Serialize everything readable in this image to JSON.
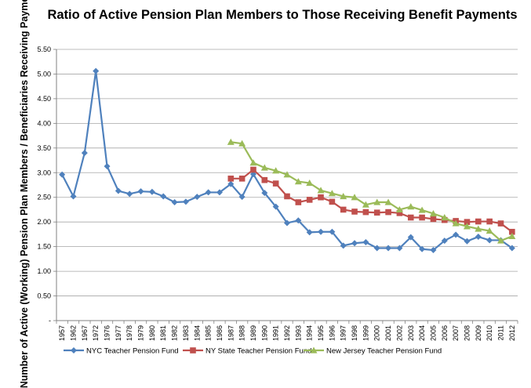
{
  "chart_data": {
    "type": "line",
    "title": "Ratio of Active Pension Plan Members to Those Receiving Benefit Payments",
    "ylabel": "Number of Active (Working) Pension Plan Members / Beneficiaries Receiving Payments",
    "xlabel": "",
    "ylim": [
      0,
      5.5
    ],
    "yticks": [
      "-",
      "0.50",
      "1.00",
      "1.50",
      "2.00",
      "2.50",
      "3.00",
      "3.50",
      "4.00",
      "4.50",
      "5.00",
      "5.50"
    ],
    "grid": true,
    "legend_position": "bottom",
    "categories": [
      "1957",
      "1962",
      "1967",
      "1972",
      "1976",
      "1977",
      "1978",
      "1979",
      "1980",
      "1981",
      "1982",
      "1983",
      "1984",
      "1985",
      "1986",
      "1987",
      "1988",
      "1989",
      "1990",
      "1991",
      "1992",
      "1993",
      "1994",
      "1995",
      "1996",
      "1997",
      "1998",
      "1999",
      "2000",
      "2001",
      "2002",
      "2003",
      "2004",
      "2005",
      "2006",
      "2007",
      "2008",
      "2009",
      "2010",
      "2011",
      "2012"
    ],
    "series": [
      {
        "name": "NYC Teacher Pension Fund",
        "color": "#4f81bd",
        "marker": "diamond",
        "values": [
          2.96,
          2.52,
          3.4,
          5.06,
          3.13,
          2.63,
          2.57,
          2.62,
          2.61,
          2.52,
          2.4,
          2.41,
          2.51,
          2.6,
          2.6,
          2.77,
          2.51,
          2.97,
          2.59,
          2.31,
          1.98,
          2.03,
          1.79,
          1.8,
          1.8,
          1.52,
          1.57,
          1.59,
          1.47,
          1.47,
          1.47,
          1.69,
          1.45,
          1.43,
          1.62,
          1.74,
          1.61,
          1.7,
          1.63,
          1.63,
          1.47
        ]
      },
      {
        "name": "NY State Teacher Pension Fund",
        "color": "#c0504d",
        "marker": "square",
        "values": [
          null,
          null,
          null,
          null,
          null,
          null,
          null,
          null,
          null,
          null,
          null,
          null,
          null,
          null,
          null,
          2.88,
          2.88,
          3.06,
          2.85,
          2.78,
          2.52,
          2.4,
          2.45,
          2.5,
          2.41,
          2.25,
          2.21,
          2.2,
          2.19,
          2.2,
          2.18,
          2.09,
          2.09,
          2.06,
          2.04,
          2.02,
          2.0,
          2.01,
          2.01,
          1.97,
          1.8
        ]
      },
      {
        "name": "New Jersey Teacher Pension Fund",
        "color": "#9bbb59",
        "marker": "triangle",
        "values": [
          null,
          null,
          null,
          null,
          null,
          null,
          null,
          null,
          null,
          null,
          null,
          null,
          null,
          null,
          null,
          3.62,
          3.59,
          3.2,
          3.1,
          3.04,
          2.96,
          2.82,
          2.79,
          2.64,
          2.58,
          2.52,
          2.5,
          2.35,
          2.4,
          2.4,
          2.25,
          2.31,
          2.24,
          2.17,
          2.09,
          1.97,
          1.91,
          1.86,
          1.82,
          1.62,
          1.71
        ]
      }
    ]
  }
}
